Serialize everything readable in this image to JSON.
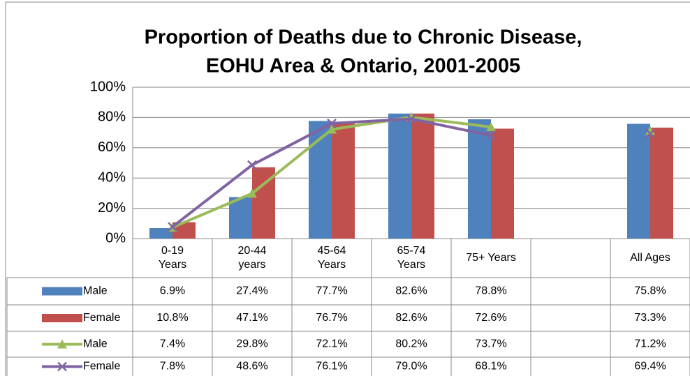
{
  "chart_data": {
    "type": "bar",
    "title": [
      "Proportion of Deaths due to Chronic Disease,",
      "EOHU Area & Ontario, 2001-2005"
    ],
    "categories": [
      "0-19\nYears",
      "20-44\nyears",
      "45-64\nYears",
      "65-74\nYears",
      "75+ Years",
      null,
      "All Ages"
    ],
    "series": [
      {
        "name": "Male",
        "type": "bar",
        "color": "#4f81bd",
        "values": [
          6.9,
          27.4,
          77.7,
          82.6,
          78.8,
          null,
          75.8
        ],
        "value_labels": [
          "6.9%",
          "27.4%",
          "77.7%",
          "82.6%",
          "78.8%",
          null,
          "75.8%"
        ]
      },
      {
        "name": "Female",
        "type": "bar",
        "color": "#c0504d",
        "values": [
          10.8,
          47.1,
          76.7,
          82.6,
          72.6,
          null,
          73.3
        ],
        "value_labels": [
          "10.8%",
          "47.1%",
          "76.7%",
          "82.6%",
          "72.6%",
          null,
          "73.3%"
        ]
      },
      {
        "name": "Male",
        "type": "line",
        "marker": "triangle",
        "color": "#9bbb59",
        "values": [
          7.4,
          29.8,
          72.1,
          80.2,
          73.7,
          null,
          71.2
        ],
        "value_labels": [
          "7.4%",
          "29.8%",
          "72.1%",
          "80.2%",
          "73.7%",
          null,
          "71.2%"
        ]
      },
      {
        "name": "Female",
        "type": "line",
        "marker": "x",
        "color": "#8064a2",
        "values": [
          7.8,
          48.6,
          76.1,
          79.0,
          68.1,
          null,
          69.4
        ],
        "value_labels": [
          "7.8%",
          "48.6%",
          "76.1%",
          "79.0%",
          "68.1%",
          null,
          "69.4%"
        ]
      }
    ],
    "ylim": [
      0,
      100
    ],
    "yticks": [
      {
        "value": 0,
        "label": "0%"
      },
      {
        "value": 20,
        "label": "20%"
      },
      {
        "value": 40,
        "label": "40%"
      },
      {
        "value": 60,
        "label": "60%"
      },
      {
        "value": 80,
        "label": "80%"
      },
      {
        "value": 100,
        "label": "100%"
      }
    ],
    "grid": true
  }
}
